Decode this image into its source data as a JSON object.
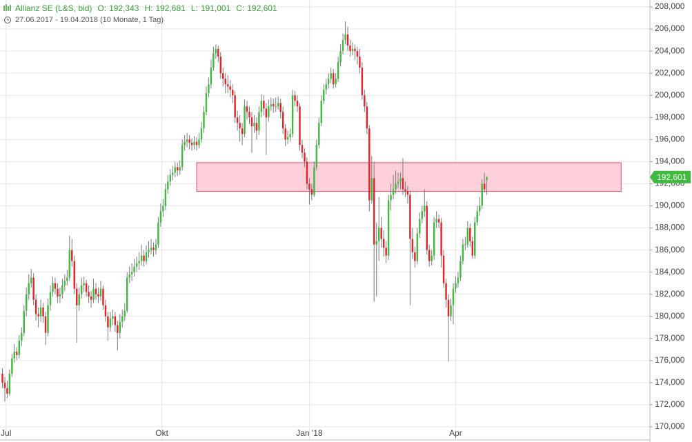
{
  "chart_data": {
    "type": "candlestick",
    "title": "Allianz SE (L&S, bid)",
    "quote": [
      {
        "label": "O:",
        "value": "192,343"
      },
      {
        "label": "H:",
        "value": "192,681"
      },
      {
        "label": "L:",
        "value": "191,001"
      },
      {
        "label": "C:",
        "value": "192,601"
      }
    ],
    "subtitle": "27.06.2017 - 19.04.2018  (10 Monate, 1 Tag)",
    "up_color": "#3fb93f",
    "down_color": "#e2232b",
    "wick_color": "#7a7a7a",
    "grid": true,
    "xlim": [
      -1,
      270
    ],
    "xticks": [
      {
        "value": 1.5,
        "label": "Jul"
      },
      {
        "value": 66.5,
        "label": "Okt"
      },
      {
        "value": 128,
        "label": "Jan '18"
      },
      {
        "value": 189,
        "label": "Apr"
      }
    ],
    "ylim": [
      170,
      208
    ],
    "yticks": [
      {
        "value": 170,
        "label": "170,000"
      },
      {
        "value": 172,
        "label": "172,000"
      },
      {
        "value": 174,
        "label": "174,000"
      },
      {
        "value": 176,
        "label": "176,000"
      },
      {
        "value": 178,
        "label": "178,000"
      },
      {
        "value": 180,
        "label": "180,000"
      },
      {
        "value": 182,
        "label": "182,000"
      },
      {
        "value": 184,
        "label": "184,000"
      },
      {
        "value": 186,
        "label": "186,000"
      },
      {
        "value": 188,
        "label": "188,000"
      },
      {
        "value": 190,
        "label": "190,000"
      },
      {
        "value": 192,
        "label": "192,000"
      },
      {
        "value": 194,
        "label": "194,000"
      },
      {
        "value": 196,
        "label": "196,000"
      },
      {
        "value": 198,
        "label": "198,000"
      },
      {
        "value": 200,
        "label": "200,000"
      },
      {
        "value": 202,
        "label": "202,000"
      },
      {
        "value": 204,
        "label": "204,000"
      },
      {
        "value": 206,
        "label": "206,000"
      },
      {
        "value": 208,
        "label": "208,000"
      }
    ],
    "zone": {
      "x": [
        81,
        258
      ],
      "y": [
        191.3,
        193.9
      ],
      "color": "#ffc4d0",
      "border": "#d2506c"
    },
    "last_value_label": {
      "value": 192.601,
      "label": "192,601"
    },
    "candles": [
      [
        174.8,
        175.3,
        173.5,
        174.0
      ],
      [
        174.0,
        174.5,
        172.3,
        173.5
      ],
      [
        173.5,
        174.2,
        172.6,
        173.0
      ],
      [
        173.0,
        175.2,
        172.8,
        174.8
      ],
      [
        174.8,
        176.6,
        174.5,
        176.2
      ],
      [
        176.2,
        177.5,
        175.8,
        176.8
      ],
      [
        176.8,
        177.2,
        176.0,
        176.5
      ],
      [
        176.5,
        178.3,
        176.2,
        177.8
      ],
      [
        177.8,
        179.0,
        177.3,
        178.5
      ],
      [
        178.5,
        181.0,
        178.2,
        180.5
      ],
      [
        180.5,
        182.6,
        180.0,
        182.0
      ],
      [
        182.0,
        183.8,
        181.5,
        183.0
      ],
      [
        183.0,
        184.3,
        182.6,
        183.5
      ],
      [
        183.5,
        183.9,
        181.0,
        181.5
      ],
      [
        181.5,
        182.0,
        179.6,
        180.2
      ],
      [
        180.2,
        180.8,
        179.0,
        180.0
      ],
      [
        180.0,
        181.5,
        179.5,
        180.8
      ],
      [
        180.8,
        181.2,
        179.4,
        180.0
      ],
      [
        180.0,
        180.4,
        177.4,
        178.5
      ],
      [
        178.5,
        181.6,
        178.2,
        181.0
      ],
      [
        181.0,
        182.8,
        180.5,
        182.2
      ],
      [
        182.2,
        183.6,
        181.8,
        183.0
      ],
      [
        183.0,
        183.5,
        182.0,
        182.5
      ],
      [
        182.5,
        183.0,
        181.2,
        181.8
      ],
      [
        181.8,
        182.6,
        181.2,
        182.0
      ],
      [
        182.0,
        183.4,
        181.6,
        182.8
      ],
      [
        182.8,
        183.8,
        182.3,
        183.2
      ],
      [
        183.2,
        184.2,
        182.8,
        183.5
      ],
      [
        183.5,
        187.3,
        183.2,
        186.0
      ],
      [
        186.0,
        187.0,
        184.5,
        185.0
      ],
      [
        185.0,
        185.5,
        182.0,
        182.5
      ],
      [
        182.5,
        183.0,
        177.6,
        181.0
      ],
      [
        181.0,
        182.6,
        180.5,
        182.0
      ],
      [
        182.0,
        183.5,
        181.6,
        182.8
      ],
      [
        182.8,
        183.6,
        182.2,
        183.0
      ],
      [
        183.0,
        183.3,
        181.8,
        182.2
      ],
      [
        182.2,
        182.8,
        181.2,
        181.8
      ],
      [
        181.8,
        182.3,
        180.8,
        181.5
      ],
      [
        181.5,
        183.4,
        181.2,
        182.5
      ],
      [
        182.5,
        183.0,
        181.5,
        182.0
      ],
      [
        182.0,
        182.6,
        181.2,
        181.8
      ],
      [
        181.8,
        183.2,
        181.4,
        182.5
      ],
      [
        182.5,
        182.8,
        180.6,
        181.0
      ],
      [
        181.0,
        181.5,
        179.5,
        180.0
      ],
      [
        180.0,
        180.4,
        177.8,
        179.0
      ],
      [
        179.0,
        180.4,
        178.6,
        179.8
      ],
      [
        179.8,
        180.6,
        179.2,
        180.0
      ],
      [
        180.0,
        180.4,
        178.6,
        179.2
      ],
      [
        179.2,
        179.6,
        176.9,
        178.5
      ],
      [
        178.5,
        180.2,
        178.0,
        179.5
      ],
      [
        179.5,
        180.6,
        179.0,
        180.0
      ],
      [
        180.0,
        181.2,
        179.6,
        180.5
      ],
      [
        180.5,
        184.0,
        180.3,
        183.5
      ],
      [
        183.5,
        184.5,
        183.0,
        183.8
      ],
      [
        183.8,
        184.8,
        183.2,
        184.0
      ],
      [
        184.0,
        185.2,
        183.6,
        184.5
      ],
      [
        184.5,
        185.4,
        184.0,
        184.8
      ],
      [
        184.8,
        185.8,
        184.2,
        185.0
      ],
      [
        185.0,
        186.5,
        184.6,
        185.5
      ],
      [
        185.5,
        186.0,
        184.5,
        185.0
      ],
      [
        185.0,
        186.4,
        184.7,
        185.8
      ],
      [
        185.8,
        186.8,
        185.3,
        186.0
      ],
      [
        186.0,
        187.0,
        185.6,
        186.2
      ],
      [
        186.2,
        186.7,
        185.4,
        186.0
      ],
      [
        186.0,
        187.0,
        185.6,
        186.5
      ],
      [
        186.5,
        189.0,
        186.2,
        188.5
      ],
      [
        188.5,
        190.2,
        188.1,
        189.5
      ],
      [
        189.5,
        190.6,
        189.0,
        190.0
      ],
      [
        190.0,
        192.0,
        189.6,
        191.5
      ],
      [
        191.5,
        192.8,
        191.1,
        192.2
      ],
      [
        192.2,
        193.3,
        191.8,
        192.8
      ],
      [
        192.8,
        193.6,
        192.3,
        193.0
      ],
      [
        193.0,
        194.0,
        192.6,
        193.5
      ],
      [
        193.5,
        193.9,
        192.7,
        193.2
      ],
      [
        193.2,
        194.1,
        192.8,
        193.5
      ],
      [
        193.5,
        196.0,
        193.2,
        195.5
      ],
      [
        195.5,
        196.4,
        195.0,
        195.8
      ],
      [
        195.8,
        196.6,
        195.3,
        196.0
      ],
      [
        196.0,
        196.4,
        195.1,
        195.7
      ],
      [
        195.7,
        196.1,
        195.0,
        195.5
      ],
      [
        195.5,
        196.3,
        195.1,
        195.8
      ],
      [
        195.8,
        196.2,
        195.0,
        195.5
      ],
      [
        195.5,
        196.6,
        195.2,
        196.0
      ],
      [
        196.0,
        197.6,
        195.7,
        197.0
      ],
      [
        197.0,
        199.0,
        196.6,
        198.5
      ],
      [
        198.5,
        200.8,
        198.2,
        200.2
      ],
      [
        200.2,
        201.6,
        199.8,
        201.0
      ],
      [
        201.0,
        203.2,
        200.6,
        202.5
      ],
      [
        202.5,
        204.4,
        202.2,
        203.8
      ],
      [
        203.8,
        204.6,
        203.3,
        204.2
      ],
      [
        204.2,
        204.5,
        203.0,
        203.5
      ],
      [
        203.5,
        203.9,
        201.5,
        202.0
      ],
      [
        202.0,
        202.5,
        200.8,
        201.5
      ],
      [
        201.5,
        202.0,
        200.2,
        201.0
      ],
      [
        201.0,
        201.8,
        200.2,
        200.8
      ],
      [
        200.8,
        201.4,
        199.8,
        200.5
      ],
      [
        200.5,
        201.0,
        199.3,
        200.0
      ],
      [
        200.0,
        200.4,
        197.5,
        198.0
      ],
      [
        198.0,
        198.6,
        196.8,
        197.5
      ],
      [
        197.5,
        198.2,
        195.8,
        197.0
      ],
      [
        197.0,
        197.5,
        195.5,
        196.5
      ],
      [
        196.5,
        199.6,
        196.2,
        199.0
      ],
      [
        199.0,
        199.5,
        197.8,
        198.5
      ],
      [
        198.5,
        199.0,
        197.4,
        198.0
      ],
      [
        198.0,
        198.5,
        194.8,
        197.2
      ],
      [
        197.2,
        198.2,
        196.6,
        197.5
      ],
      [
        197.5,
        198.0,
        196.0,
        196.8
      ],
      [
        196.8,
        199.0,
        196.4,
        198.5
      ],
      [
        198.5,
        200.1,
        198.0,
        199.5
      ],
      [
        199.5,
        200.0,
        198.2,
        198.8
      ],
      [
        198.8,
        199.3,
        194.6,
        198.0
      ],
      [
        198.0,
        199.6,
        197.6,
        199.0
      ],
      [
        199.0,
        199.8,
        198.6,
        199.2
      ],
      [
        199.2,
        199.7,
        198.4,
        199.0
      ],
      [
        199.0,
        199.8,
        198.5,
        199.0
      ],
      [
        199.0,
        199.9,
        198.7,
        199.3
      ],
      [
        199.3,
        199.7,
        197.9,
        198.5
      ],
      [
        198.5,
        199.0,
        196.5,
        197.0
      ],
      [
        197.0,
        197.4,
        195.4,
        196.0
      ],
      [
        196.0,
        196.8,
        195.6,
        196.2
      ],
      [
        196.2,
        197.0,
        195.8,
        196.5
      ],
      [
        196.5,
        200.5,
        196.2,
        200.0
      ],
      [
        200.0,
        200.4,
        199.0,
        199.5
      ],
      [
        199.5,
        200.0,
        198.5,
        199.0
      ],
      [
        199.0,
        199.3,
        195.0,
        195.5
      ],
      [
        195.5,
        196.0,
        194.3,
        194.8
      ],
      [
        194.8,
        195.2,
        193.5,
        194.0
      ],
      [
        194.0,
        194.4,
        191.5,
        192.0
      ],
      [
        192.0,
        192.5,
        190.1,
        191.5
      ],
      [
        191.5,
        192.0,
        190.5,
        191.0
      ],
      [
        191.0,
        194.0,
        190.8,
        193.5
      ],
      [
        193.5,
        196.0,
        193.2,
        195.5
      ],
      [
        195.5,
        198.0,
        195.2,
        197.5
      ],
      [
        197.5,
        200.0,
        197.2,
        199.5
      ],
      [
        199.5,
        201.0,
        199.2,
        200.5
      ],
      [
        200.5,
        201.5,
        200.1,
        201.0
      ],
      [
        201.0,
        202.0,
        200.6,
        201.5
      ],
      [
        201.5,
        202.5,
        201.1,
        202.0
      ],
      [
        202.0,
        202.4,
        200.6,
        201.0
      ],
      [
        201.0,
        202.0,
        200.7,
        201.5
      ],
      [
        201.5,
        203.5,
        201.2,
        203.0
      ],
      [
        203.0,
        204.6,
        202.6,
        204.0
      ],
      [
        204.0,
        205.6,
        203.7,
        205.0
      ],
      [
        205.0,
        206.7,
        204.6,
        205.5
      ],
      [
        205.5,
        206.2,
        204.0,
        204.5
      ],
      [
        204.5,
        205.0,
        203.5,
        204.0
      ],
      [
        204.0,
        204.8,
        203.6,
        204.2
      ],
      [
        204.2,
        204.6,
        203.2,
        204.0
      ],
      [
        204.0,
        204.4,
        202.8,
        203.5
      ],
      [
        203.5,
        204.2,
        202.0,
        202.5
      ],
      [
        202.5,
        203.0,
        199.6,
        200.0
      ],
      [
        200.0,
        200.5,
        198.5,
        199.0
      ],
      [
        199.0,
        199.4,
        196.5,
        197.0
      ],
      [
        197.0,
        197.3,
        189.5,
        190.5
      ],
      [
        190.5,
        194.5,
        190.2,
        192.5
      ],
      [
        192.5,
        194.0,
        181.3,
        186.5
      ],
      [
        186.5,
        188.5,
        181.8,
        186.8
      ],
      [
        186.8,
        190.8,
        185.0,
        188.0
      ],
      [
        188.0,
        189.0,
        186.2,
        187.0
      ],
      [
        187.0,
        187.8,
        185.4,
        186.2
      ],
      [
        186.2,
        186.8,
        184.8,
        185.5
      ],
      [
        185.5,
        191.0,
        185.1,
        190.5
      ],
      [
        190.5,
        192.0,
        189.6,
        191.0
      ],
      [
        191.0,
        192.8,
        190.6,
        191.5
      ],
      [
        191.5,
        193.2,
        191.1,
        192.0
      ],
      [
        192.0,
        193.0,
        191.6,
        192.2
      ],
      [
        192.2,
        193.0,
        191.5,
        192.5
      ],
      [
        192.5,
        194.3,
        191.0,
        191.5
      ],
      [
        191.5,
        192.2,
        190.8,
        191.3
      ],
      [
        191.3,
        191.8,
        190.2,
        191.0
      ],
      [
        191.0,
        191.4,
        181.0,
        187.0
      ],
      [
        187.0,
        188.0,
        185.2,
        185.8
      ],
      [
        185.8,
        186.3,
        184.4,
        185.0
      ],
      [
        185.0,
        188.0,
        184.7,
        187.5
      ],
      [
        187.5,
        189.4,
        187.1,
        188.8
      ],
      [
        188.8,
        190.0,
        188.4,
        189.5
      ],
      [
        189.5,
        191.5,
        189.0,
        190.0
      ],
      [
        190.0,
        190.4,
        185.6,
        186.0
      ],
      [
        186.0,
        186.5,
        184.5,
        185.0
      ],
      [
        185.0,
        186.0,
        184.6,
        185.5
      ],
      [
        185.5,
        189.0,
        185.1,
        188.5
      ],
      [
        188.5,
        189.5,
        188.0,
        188.8
      ],
      [
        188.8,
        189.2,
        188.0,
        188.5
      ],
      [
        188.5,
        188.9,
        184.4,
        185.5
      ],
      [
        185.5,
        186.0,
        182.6,
        183.0
      ],
      [
        183.0,
        183.4,
        180.8,
        181.5
      ],
      [
        181.5,
        182.0,
        175.9,
        180.0
      ],
      [
        180.0,
        181.6,
        179.6,
        181.0
      ],
      [
        181.0,
        183.0,
        179.3,
        182.5
      ],
      [
        182.5,
        183.6,
        182.1,
        183.0
      ],
      [
        183.0,
        184.0,
        182.6,
        183.5
      ],
      [
        183.5,
        185.5,
        183.2,
        185.0
      ],
      [
        185.0,
        187.0,
        184.7,
        186.5
      ],
      [
        186.5,
        187.2,
        186.0,
        186.5
      ],
      [
        186.5,
        188.6,
        186.2,
        188.0
      ],
      [
        188.0,
        188.4,
        186.3,
        186.8
      ],
      [
        186.8,
        187.2,
        185.2,
        185.5
      ],
      [
        185.5,
        189.0,
        185.2,
        188.5
      ],
      [
        188.5,
        190.0,
        188.2,
        189.5
      ],
      [
        189.5,
        190.8,
        189.1,
        190.0
      ],
      [
        190.0,
        192.4,
        189.7,
        192.0
      ],
      [
        192.0,
        193.0,
        191.2,
        191.5
      ],
      [
        192.343,
        192.681,
        191.001,
        192.601
      ]
    ]
  }
}
